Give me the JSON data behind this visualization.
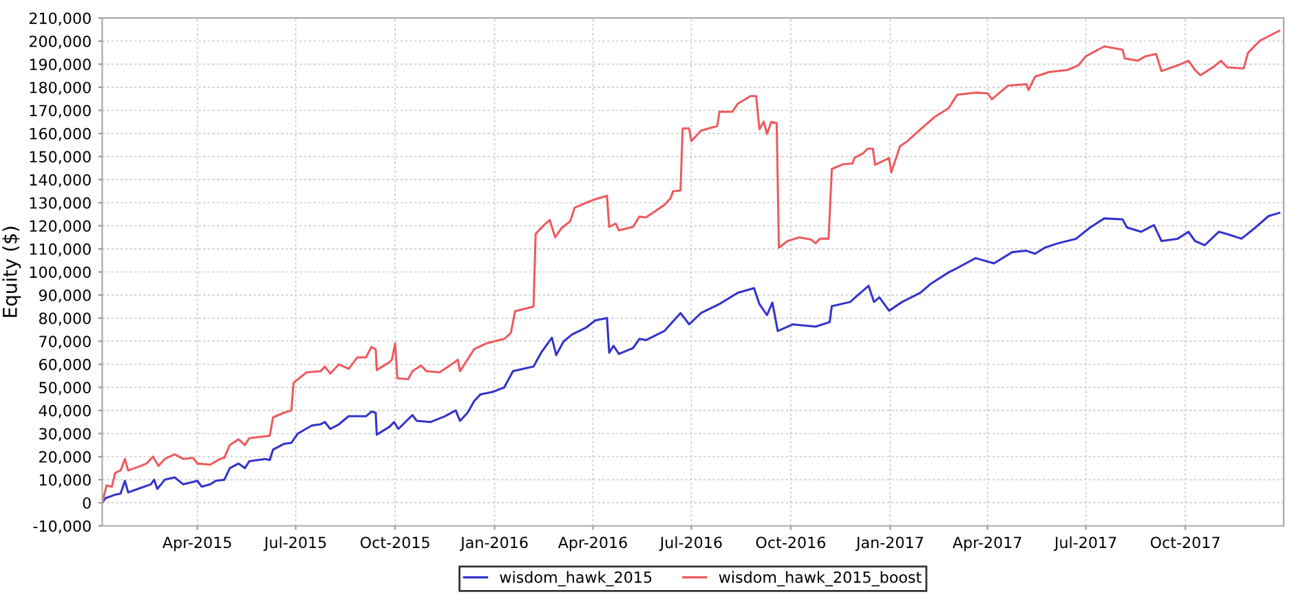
{
  "chart_data": {
    "type": "line",
    "ylabel": "Equity ($)",
    "xlim": [
      "2015-01-03",
      "2017-12-31"
    ],
    "xticks": [
      {
        "value": "2015-04-01",
        "label": "Apr-2015"
      },
      {
        "value": "2015-07-01",
        "label": "Jul-2015"
      },
      {
        "value": "2015-10-01",
        "label": "Oct-2015"
      },
      {
        "value": "2016-01-01",
        "label": "Jan-2016"
      },
      {
        "value": "2016-04-01",
        "label": "Apr-2016"
      },
      {
        "value": "2016-07-01",
        "label": "Jul-2016"
      },
      {
        "value": "2016-10-01",
        "label": "Oct-2016"
      },
      {
        "value": "2017-01-01",
        "label": "Jan-2017"
      },
      {
        "value": "2017-04-01",
        "label": "Apr-2017"
      },
      {
        "value": "2017-07-01",
        "label": "Jul-2017"
      },
      {
        "value": "2017-10-01",
        "label": "Oct-2017"
      }
    ],
    "ylim": [
      -10000,
      210000
    ],
    "yticks": [
      {
        "value": -10000,
        "label": "-10,000"
      },
      0,
      {
        "value": 10000,
        "label": "10,000"
      },
      {
        "value": 20000,
        "label": "20,000"
      },
      {
        "value": 30000,
        "label": "30,000"
      },
      {
        "value": 40000,
        "label": "40,000"
      },
      {
        "value": 50000,
        "label": "50,000"
      },
      {
        "value": 60000,
        "label": "60,000"
      },
      {
        "value": 70000,
        "label": "70,000"
      },
      {
        "value": 80000,
        "label": "80,000"
      },
      {
        "value": 90000,
        "label": "90,000"
      },
      {
        "value": 100000,
        "label": "100,000"
      },
      {
        "value": 110000,
        "label": "110,000"
      },
      {
        "value": 120000,
        "label": "120,000"
      },
      {
        "value": 130000,
        "label": "130,000"
      },
      {
        "value": 140000,
        "label": "140,000"
      },
      {
        "value": 150000,
        "label": "150,000"
      },
      {
        "value": 160000,
        "label": "160,000"
      },
      {
        "value": 170000,
        "label": "170,000"
      },
      {
        "value": 180000,
        "label": "180,000"
      },
      {
        "value": 190000,
        "label": "190,000"
      },
      {
        "value": 200000,
        "label": "200,000"
      },
      {
        "value": 210000,
        "label": "210,000"
      }
    ],
    "grid": true,
    "legend": "bottom",
    "marker": "none",
    "line_style": "solid",
    "series": [
      {
        "name": "wisdom_hawk_2015",
        "color": "#3333cc",
        "x": [
          "2015-01-03",
          "2015-01-06",
          "2015-01-15",
          "2015-01-20",
          "2015-01-24",
          "2015-01-27",
          "2015-02-05",
          "2015-02-17",
          "2015-02-20",
          "2015-02-23",
          "2015-03-02",
          "2015-03-11",
          "2015-03-19",
          "2015-04-01",
          "2015-04-05",
          "2015-04-13",
          "2015-04-18",
          "2015-04-26",
          "2015-05-01",
          "2015-05-09",
          "2015-05-15",
          "2015-05-19",
          "2015-06-03",
          "2015-06-07",
          "2015-06-10",
          "2015-06-20",
          "2015-06-27",
          "2015-07-03",
          "2015-07-16",
          "2015-07-24",
          "2015-07-28",
          "2015-08-02",
          "2015-08-10",
          "2015-08-19",
          "2015-09-04",
          "2015-09-09",
          "2015-09-13",
          "2015-09-14",
          "2015-09-26",
          "2015-09-30",
          "2015-10-04",
          "2015-10-17",
          "2015-10-21",
          "2015-11-03",
          "2015-11-16",
          "2015-11-26",
          "2015-11-30",
          "2015-12-07",
          "2015-12-13",
          "2015-12-19",
          "2015-12-30",
          "2016-01-10",
          "2016-01-18",
          "2016-01-27",
          "2016-02-06",
          "2016-02-13",
          "2016-02-23",
          "2016-02-27",
          "2016-03-05",
          "2016-03-13",
          "2016-03-26",
          "2016-04-03",
          "2016-04-14",
          "2016-04-16",
          "2016-04-20",
          "2016-04-25",
          "2016-05-08",
          "2016-05-14",
          "2016-05-20",
          "2016-06-06",
          "2016-06-21",
          "2016-06-29",
          "2016-07-10",
          "2016-07-27",
          "2016-08-13",
          "2016-08-28",
          "2016-09-02",
          "2016-09-09",
          "2016-09-14",
          "2016-09-19",
          "2016-10-03",
          "2016-10-24",
          "2016-11-06",
          "2016-11-08",
          "2016-11-25",
          "2016-12-01",
          "2016-12-12",
          "2016-12-17",
          "2016-12-22",
          "2016-12-31",
          "2017-01-12",
          "2017-01-29",
          "2017-02-07",
          "2017-02-24",
          "2017-03-04",
          "2017-03-21",
          "2017-04-07",
          "2017-04-24",
          "2017-05-07",
          "2017-05-15",
          "2017-05-24",
          "2017-06-05",
          "2017-06-22",
          "2017-07-05",
          "2017-07-18",
          "2017-08-04",
          "2017-08-08",
          "2017-08-21",
          "2017-09-02",
          "2017-09-09",
          "2017-09-24",
          "2017-10-04",
          "2017-10-10",
          "2017-10-19",
          "2017-11-01",
          "2017-11-09",
          "2017-11-22",
          "2017-12-05",
          "2017-12-17",
          "2017-12-27"
        ],
        "values": [
          0,
          2000,
          3500,
          4000,
          9500,
          4500,
          6000,
          8000,
          10000,
          6000,
          10000,
          11000,
          8000,
          9500,
          7000,
          8000,
          9500,
          10000,
          15000,
          17000,
          15000,
          18000,
          19000,
          18500,
          23000,
          25500,
          26000,
          30000,
          33500,
          34000,
          35000,
          32000,
          34000,
          37500,
          37500,
          39500,
          39000,
          29500,
          33000,
          35000,
          32000,
          38000,
          35500,
          35000,
          37500,
          40000,
          35500,
          39000,
          44000,
          47000,
          48000,
          50000,
          57000,
          58000,
          59000,
          65000,
          71500,
          64000,
          70000,
          73000,
          76000,
          79000,
          80000,
          65000,
          68000,
          64500,
          67000,
          71000,
          70500,
          74400,
          82200,
          77300,
          82200,
          86100,
          91000,
          93000,
          86100,
          81300,
          86700,
          74400,
          77300,
          76300,
          78300,
          85200,
          87000,
          89500,
          94000,
          87000,
          89000,
          83200,
          87000,
          91000,
          94700,
          99800,
          101700,
          106000,
          103700,
          108600,
          109200,
          107900,
          110500,
          112400,
          114400,
          119300,
          123200,
          122800,
          119300,
          117400,
          120300,
          113400,
          114400,
          117400,
          113400,
          111600,
          117400,
          116400,
          114400,
          119300,
          124200,
          125600
        ]
      },
      {
        "name": "wisdom_hawk_2015_boost",
        "color": "#ee5a5f",
        "x": [
          "2015-01-03",
          "2015-01-07",
          "2015-01-12",
          "2015-01-15",
          "2015-01-20",
          "2015-01-24",
          "2015-01-27",
          "2015-02-05",
          "2015-02-13",
          "2015-02-19",
          "2015-02-24",
          "2015-03-02",
          "2015-03-11",
          "2015-03-19",
          "2015-03-28",
          "2015-04-01",
          "2015-04-13",
          "2015-04-22",
          "2015-04-26",
          "2015-05-01",
          "2015-05-09",
          "2015-05-15",
          "2015-05-19",
          "2015-06-07",
          "2015-06-10",
          "2015-06-20",
          "2015-06-27",
          "2015-06-29",
          "2015-07-11",
          "2015-07-24",
          "2015-07-28",
          "2015-08-02",
          "2015-08-10",
          "2015-08-19",
          "2015-08-27",
          "2015-09-04",
          "2015-09-09",
          "2015-09-13",
          "2015-09-14",
          "2015-09-26",
          "2015-09-28",
          "2015-10-01",
          "2015-10-03",
          "2015-10-13",
          "2015-10-17",
          "2015-10-25",
          "2015-10-30",
          "2015-11-11",
          "2015-11-24",
          "2015-11-28",
          "2015-11-30",
          "2015-12-13",
          "2015-12-24",
          "2016-01-10",
          "2016-01-16",
          "2016-01-20",
          "2016-02-06",
          "2016-02-08",
          "2016-02-15",
          "2016-02-21",
          "2016-02-26",
          "2016-03-03",
          "2016-03-11",
          "2016-03-15",
          "2016-03-26",
          "2016-04-03",
          "2016-04-14",
          "2016-04-16",
          "2016-04-22",
          "2016-04-25",
          "2016-05-08",
          "2016-05-14",
          "2016-05-20",
          "2016-06-06",
          "2016-06-12",
          "2016-06-14",
          "2016-06-21",
          "2016-06-23",
          "2016-06-29",
          "2016-07-01",
          "2016-07-10",
          "2016-07-25",
          "2016-07-27",
          "2016-08-08",
          "2016-08-13",
          "2016-08-25",
          "2016-08-30",
          "2016-09-02",
          "2016-09-06",
          "2016-09-09",
          "2016-09-13",
          "2016-09-18",
          "2016-09-20",
          "2016-09-28",
          "2016-10-09",
          "2016-10-20",
          "2016-10-24",
          "2016-10-28",
          "2016-11-05",
          "2016-11-08",
          "2016-11-18",
          "2016-11-27",
          "2016-11-29",
          "2016-12-07",
          "2016-12-11",
          "2016-12-16",
          "2016-12-18",
          "2016-12-31",
          "2017-01-02",
          "2017-01-10",
          "2017-01-17",
          "2017-01-29",
          "2017-02-11",
          "2017-02-24",
          "2017-03-04",
          "2017-03-21",
          "2017-04-01",
          "2017-04-05",
          "2017-04-20",
          "2017-05-07",
          "2017-05-09",
          "2017-05-15",
          "2017-05-28",
          "2017-06-14",
          "2017-06-24",
          "2017-07-01",
          "2017-07-18",
          "2017-08-04",
          "2017-08-06",
          "2017-08-18",
          "2017-08-25",
          "2017-09-04",
          "2017-09-09",
          "2017-09-24",
          "2017-10-04",
          "2017-10-10",
          "2017-10-15",
          "2017-10-28",
          "2017-11-03",
          "2017-11-09",
          "2017-11-24",
          "2017-11-28",
          "2017-12-09",
          "2017-12-27"
        ],
        "values": [
          0,
          7500,
          7000,
          13000,
          14000,
          19000,
          14000,
          15500,
          17000,
          20000,
          16000,
          19000,
          21000,
          19000,
          19500,
          17000,
          16500,
          19000,
          19500,
          25000,
          27500,
          25000,
          28000,
          29000,
          37000,
          39000,
          40000,
          52000,
          56500,
          57000,
          59000,
          56000,
          60000,
          58000,
          63000,
          63000,
          67500,
          66500,
          57500,
          61000,
          62000,
          69000,
          54000,
          53500,
          57000,
          59500,
          57000,
          56500,
          60500,
          62000,
          57000,
          66500,
          69000,
          71000,
          73500,
          83000,
          85000,
          116500,
          120000,
          122500,
          115000,
          119000,
          122000,
          127800,
          130000,
          131500,
          133000,
          119500,
          121000,
          118000,
          119500,
          124000,
          123600,
          129000,
          132000,
          134900,
          135300,
          162200,
          162200,
          156700,
          161200,
          163200,
          169400,
          169400,
          172900,
          176200,
          176200,
          161800,
          165100,
          159800,
          165000,
          164500,
          110500,
          113400,
          115000,
          114000,
          112400,
          114400,
          114400,
          144600,
          146600,
          147000,
          149500,
          151400,
          153400,
          153400,
          146400,
          149300,
          143100,
          154400,
          156700,
          161800,
          167100,
          170900,
          176800,
          177700,
          177400,
          174800,
          180700,
          181300,
          178800,
          184600,
          186600,
          187500,
          189500,
          193400,
          197700,
          196300,
          192500,
          191500,
          193400,
          194400,
          187000,
          189500,
          191500,
          187500,
          185200,
          189100,
          191500,
          188600,
          188200,
          194900,
          200200,
          204500
        ]
      }
    ]
  }
}
